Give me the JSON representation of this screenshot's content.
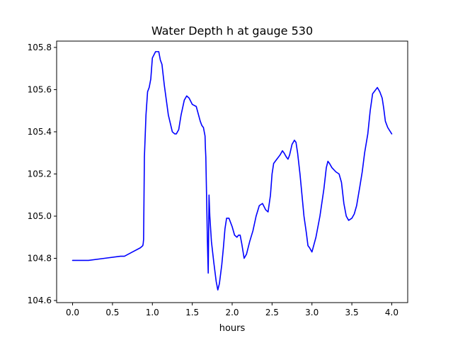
{
  "chart_data": {
    "type": "line",
    "title": "Water Depth h at gauge 530",
    "xlabel": "hours",
    "ylabel": "",
    "xlim": [
      -0.2,
      4.2
    ],
    "ylim": [
      104.59,
      105.83
    ],
    "xticks": [
      0.0,
      0.5,
      1.0,
      1.5,
      2.0,
      2.5,
      3.0,
      3.5,
      4.0
    ],
    "xtick_labels": [
      "0.0",
      "0.5",
      "1.0",
      "1.5",
      "2.0",
      "2.5",
      "3.0",
      "3.5",
      "4.0"
    ],
    "yticks": [
      104.6,
      104.8,
      105.0,
      105.2,
      105.4,
      105.6,
      105.8
    ],
    "ytick_labels": [
      "104.6",
      "104.8",
      "105.0",
      "105.2",
      "105.4",
      "105.6",
      "105.8"
    ],
    "grid": false,
    "legend": "none",
    "series": [
      {
        "color": "#0000ff",
        "x": [
          0.0,
          0.2,
          0.4,
          0.6,
          0.65,
          0.75,
          0.85,
          0.88,
          0.885,
          0.89,
          0.9,
          0.91,
          0.92,
          0.94,
          0.96,
          0.98,
          1.0,
          1.04,
          1.08,
          1.1,
          1.12,
          1.15,
          1.2,
          1.25,
          1.28,
          1.3,
          1.33,
          1.36,
          1.4,
          1.43,
          1.46,
          1.5,
          1.55,
          1.6,
          1.62,
          1.64,
          1.66,
          1.665,
          1.67,
          1.69,
          1.7,
          1.71,
          1.72,
          1.74,
          1.77,
          1.8,
          1.82,
          1.84,
          1.87,
          1.89,
          1.91,
          1.93,
          1.96,
          2.0,
          2.03,
          2.06,
          2.08,
          2.1,
          2.12,
          2.15,
          2.18,
          2.22,
          2.26,
          2.3,
          2.34,
          2.38,
          2.42,
          2.45,
          2.48,
          2.5,
          2.52,
          2.54,
          2.56,
          2.6,
          2.63,
          2.65,
          2.68,
          2.7,
          2.72,
          2.75,
          2.78,
          2.8,
          2.82,
          2.85,
          2.9,
          2.93,
          2.95,
          2.97,
          3.0,
          3.05,
          3.1,
          3.15,
          3.18,
          3.2,
          3.22,
          3.25,
          3.3,
          3.34,
          3.37,
          3.4,
          3.43,
          3.46,
          3.5,
          3.53,
          3.56,
          3.6,
          3.63,
          3.66,
          3.7,
          3.73,
          3.76,
          3.8,
          3.82,
          3.85,
          3.88,
          3.9,
          3.92,
          3.95,
          4.0
        ],
        "values": [
          104.79,
          104.79,
          104.8,
          104.81,
          104.81,
          104.83,
          104.85,
          104.86,
          104.87,
          104.89,
          105.28,
          105.38,
          105.48,
          105.59,
          105.61,
          105.65,
          105.75,
          105.78,
          105.78,
          105.74,
          105.72,
          105.62,
          105.48,
          105.4,
          105.39,
          105.39,
          105.41,
          105.48,
          105.55,
          105.57,
          105.56,
          105.53,
          105.52,
          105.45,
          105.43,
          105.42,
          105.38,
          105.32,
          105.28,
          104.88,
          104.73,
          105.1,
          105.0,
          104.88,
          104.78,
          104.69,
          104.65,
          104.68,
          104.77,
          104.85,
          104.94,
          104.99,
          104.99,
          104.95,
          104.91,
          104.9,
          104.91,
          104.91,
          104.87,
          104.8,
          104.82,
          104.88,
          104.93,
          105.0,
          105.05,
          105.06,
          105.03,
          105.02,
          105.1,
          105.2,
          105.25,
          105.26,
          105.27,
          105.29,
          105.31,
          105.3,
          105.28,
          105.27,
          105.29,
          105.34,
          105.36,
          105.35,
          105.3,
          105.2,
          105.0,
          104.92,
          104.86,
          104.85,
          104.83,
          104.9,
          105.0,
          105.13,
          105.23,
          105.26,
          105.25,
          105.23,
          105.21,
          105.2,
          105.16,
          105.06,
          105.0,
          104.98,
          104.99,
          105.01,
          105.05,
          105.14,
          105.21,
          105.3,
          105.39,
          105.5,
          105.58,
          105.6,
          105.61,
          105.59,
          105.56,
          105.51,
          105.45,
          105.42,
          105.39
        ]
      }
    ]
  }
}
